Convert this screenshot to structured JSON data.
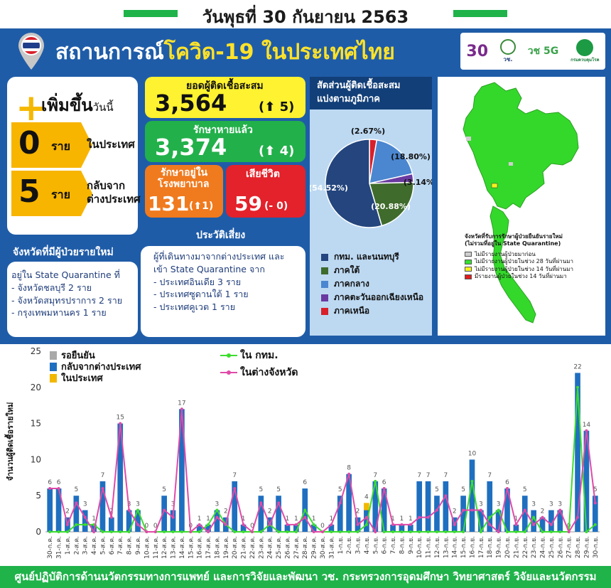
{
  "header": {
    "date": "วันพุธที่ 30 กันยายน 2563"
  },
  "title": {
    "main": "สถานการณ์",
    "highlight": "โควิด-19 ในประเทศไทย"
  },
  "logos": [
    "30",
    "วช.",
    "วช 5G",
    "กรมควบคุมโรค"
  ],
  "colors": {
    "panel": "#1f5ca8",
    "accent_green": "#1fb34a",
    "accent_yellow": "#ffe22a"
  },
  "increase": {
    "title": "เพิ่มขึ้น",
    "title_suffix": "วันนี้",
    "local_count": "0",
    "local_unit": "ราย",
    "local_label": "ในประเทศ",
    "abroad_count": "5",
    "abroad_unit": "ราย",
    "abroad_label_1": "กลับจาก",
    "abroad_label_2": "ต่างประเทศ"
  },
  "stats": {
    "cumulative_label": "ยอดผู้ติดเชื้อสะสม",
    "cumulative_value": "3,564",
    "cumulative_delta": "(⬆ 5)",
    "recovered_label": "รักษาหายแล้ว",
    "recovered_value": "3,374",
    "recovered_delta": "(⬆ 4)",
    "hospital_label_1": "รักษาอยู่ใน",
    "hospital_label_2": "โรงพยาบาล",
    "hospital_value": "131",
    "hospital_delta": "(⬆1)",
    "deaths_label": "เสียชีวิต",
    "deaths_value": "59",
    "deaths_delta": "(- 0)"
  },
  "provinces": {
    "heading": "จังหวัดที่มีผู้ป่วยรายใหม่",
    "intro": "อยู่ใน State Quarantine ที่",
    "items": [
      "-   จังหวัดชลบุรี 2 ราย",
      "-   จังหวัดสมุทรปราการ 2 ราย",
      "-   กรุงเทพมหานคร 1 ราย"
    ]
  },
  "risk": {
    "heading": "ประวัติเสี่ยง",
    "intro_1": "ผู้ที่เดินทางมาจากต่างประเทศ และ",
    "intro_2": "เข้า State Quarantine จาก",
    "items": [
      "-   ประเทศอินเดีย 3 ราย",
      "-   ประเทศซูดานใต้ 1 ราย",
      "-   ประเทศคูเวต 1 ราย"
    ]
  },
  "pie": {
    "heading_1": "สัดส่วนผู้ติดเชื้อสะสม",
    "heading_2": "แบ่งตามภูมิภาค",
    "slices": [
      {
        "name": "กทม. และนนทบุรี",
        "value": 54.52,
        "label": "(54.52%)",
        "color": "#24457d"
      },
      {
        "name": "ภาคใต้",
        "value": 20.88,
        "label": "(20.88%)",
        "color": "#3f6b2c"
      },
      {
        "name": "ภาคกลาง",
        "value": 18.8,
        "label": "(18.80%)",
        "color": "#4b86d0"
      },
      {
        "name": "ภาคตะวันออกเฉียงเหนือ",
        "value": 3.14,
        "label": "(3.14%)",
        "color": "#6a3aa0"
      },
      {
        "name": "ภาคเหนือ",
        "value": 2.67,
        "label": "(2.67%)",
        "color": "#d8202a"
      }
    ]
  },
  "map": {
    "legend_title_1": "จังหวัดที่รับการรักษาผู้ป่วยยืนยันรายใหม่",
    "legend_title_2": "(ไม่รวมที่อยู่ใน State Quarantine)",
    "legend": [
      {
        "label": "ไม่มีรายงานผู้ป่วยมาก่อน",
        "color": "#cfcfcf"
      },
      {
        "label": "ไม่มีรายงานผู้ป่วยในช่วง 28 วันที่ผ่านมา",
        "color": "#36e02e"
      },
      {
        "label": "ไม่มีรายงานผู้ป่วยในช่วง 14 วันที่ผ่านมา",
        "color": "#f5f21c"
      },
      {
        "label": "มีรายงานผู้ป่วยในช่วง 14 วันที่ผ่านมา",
        "color": "#e21b1b"
      }
    ]
  },
  "chart_data": {
    "type": "bar",
    "ylabel": "จำนวนผู้ติดเชื้อรายใหม่",
    "ylim": [
      0,
      25
    ],
    "yticks": [
      0,
      5,
      10,
      15,
      20,
      25
    ],
    "categories": [
      "30-ก.ค.",
      "31-ก.ค.",
      "1-ส.ค.",
      "2-ส.ค.",
      "3-ส.ค.",
      "4-ส.ค.",
      "5-ส.ค.",
      "6-ส.ค.",
      "7-ส.ค.",
      "8-ส.ค.",
      "9-ส.ค.",
      "10-ส.ค.",
      "11-ส.ค.",
      "12-ส.ค.",
      "13-ส.ค.",
      "14-ส.ค.",
      "15-ส.ค.",
      "16-ส.ค.",
      "17-ส.ค.",
      "18-ส.ค.",
      "19-ส.ค.",
      "20-ส.ค.",
      "21-ส.ค.",
      "22-ส.ค.",
      "23-ส.ค.",
      "24-ส.ค.",
      "25-ส.ค.",
      "26-ส.ค.",
      "27-ส.ค.",
      "28-ส.ค.",
      "29-ส.ค.",
      "30-ส.ค.",
      "31-ส.ค.",
      "1-ก.ย.",
      "2-ก.ย.",
      "3-ก.ย.",
      "4-ก.ย.",
      "5-ก.ย.",
      "6-ก.ย.",
      "7-ก.ย.",
      "8-ก.ย.",
      "9-ก.ย.",
      "10-ก.ย.",
      "11-ก.ย.",
      "12-ก.ย.",
      "13-ก.ย.",
      "14-ก.ย.",
      "15-ก.ย.",
      "16-ก.ย.",
      "17-ก.ย.",
      "18-ก.ย.",
      "19-ก.ย.",
      "20-ก.ย.",
      "21-ก.ย.",
      "22-ก.ย.",
      "23-ก.ย.",
      "24-ก.ย.",
      "25-ก.ย.",
      "26-ก.ย.",
      "27-ก.ย.",
      "28-ก.ย.",
      "29-ก.ย.",
      "30-ก.ย."
    ],
    "totals": [
      6,
      6,
      2,
      5,
      3,
      1,
      7,
      2,
      15,
      3,
      3,
      0,
      0,
      5,
      3,
      17,
      0,
      1,
      1,
      3,
      2,
      7,
      1,
      0,
      5,
      2,
      5,
      1,
      1,
      6,
      1,
      0,
      1,
      5,
      8,
      2,
      4,
      7,
      6,
      1,
      1,
      1,
      7,
      7,
      5,
      7,
      2,
      5,
      10,
      3,
      7,
      3,
      6,
      1,
      5,
      3,
      2,
      3,
      3,
      0,
      22,
      14,
      5
    ],
    "series": [
      {
        "name": "รอยืนยัน",
        "type": "bar",
        "color": "#a9a9a9",
        "values": [
          0,
          0,
          0,
          0,
          0,
          0,
          0,
          0,
          0,
          0,
          0,
          0,
          0,
          0,
          0,
          0,
          0,
          0,
          0,
          0,
          0,
          0,
          0,
          0,
          0,
          0,
          0,
          0,
          0,
          0,
          0,
          0,
          0,
          0,
          0,
          0,
          0,
          0,
          0,
          0,
          0,
          0,
          0,
          0,
          0,
          0,
          0,
          0,
          0,
          0,
          0,
          0,
          0,
          0,
          0,
          0,
          0,
          0,
          0,
          0,
          0,
          0,
          0
        ]
      },
      {
        "name": "กลับจากต่างประเทศ",
        "type": "bar",
        "color": "#1f6fc0",
        "values": [
          6,
          6,
          2,
          5,
          3,
          1,
          7,
          2,
          15,
          3,
          3,
          0,
          0,
          5,
          3,
          17,
          0,
          1,
          1,
          3,
          2,
          7,
          1,
          0,
          5,
          2,
          5,
          1,
          1,
          6,
          1,
          0,
          1,
          5,
          8,
          2,
          3,
          7,
          6,
          1,
          1,
          1,
          7,
          7,
          5,
          7,
          2,
          5,
          10,
          3,
          7,
          3,
          6,
          1,
          5,
          3,
          2,
          3,
          3,
          0,
          22,
          14,
          5
        ]
      },
      {
        "name": "ในประเทศ",
        "type": "bar",
        "color": "#f2b800",
        "values": [
          0,
          0,
          0,
          0,
          0,
          0,
          0,
          0,
          0,
          0,
          0,
          0,
          0,
          0,
          0,
          0,
          0,
          0,
          0,
          0,
          0,
          0,
          0,
          0,
          0,
          0,
          0,
          0,
          0,
          0,
          0,
          0,
          0,
          0,
          0,
          0,
          1,
          0,
          0,
          0,
          0,
          0,
          0,
          0,
          0,
          0,
          0,
          0,
          0,
          0,
          0,
          0,
          0,
          0,
          0,
          0,
          0,
          0,
          0,
          0,
          0,
          0,
          0
        ]
      },
      {
        "name": "ใน กทม.",
        "type": "line",
        "color": "#3ddc2e",
        "values": [
          0,
          0,
          0,
          1,
          1,
          1,
          0,
          0,
          0,
          0,
          3,
          0,
          0,
          0,
          0,
          0,
          0,
          0,
          1,
          3,
          1,
          0,
          0,
          0,
          0,
          1,
          0,
          0,
          0,
          3,
          1,
          0,
          0,
          0,
          0,
          0,
          1,
          7,
          0,
          0,
          0,
          0,
          0,
          0,
          0,
          0,
          0,
          0,
          7,
          0,
          2,
          3,
          0,
          0,
          0,
          2,
          0,
          0,
          0,
          0,
          20,
          0,
          1
        ]
      },
      {
        "name": "ในต่างจังหวัด",
        "type": "line",
        "color": "#e04aa8",
        "values": [
          6,
          6,
          1,
          4,
          2,
          0,
          6,
          2,
          15,
          3,
          1,
          0,
          0,
          3,
          2,
          17,
          0,
          1,
          0,
          2,
          1,
          6,
          1,
          0,
          4,
          1,
          4,
          1,
          1,
          2,
          0,
          0,
          1,
          4,
          8,
          1,
          2,
          0,
          6,
          1,
          1,
          1,
          2,
          2,
          3,
          5,
          1,
          3,
          3,
          3,
          1,
          0,
          6,
          1,
          3,
          1,
          2,
          1,
          3,
          0,
          2,
          14,
          4
        ]
      }
    ]
  },
  "footer": {
    "text": "ศูนย์ปฏิบัติการด้านนวัตกรรมทางการแพทย์ และการวิจัยและพัฒนา   วช.   กระทรวงการอุดมศึกษา วิทยาศาสตร์ วิจัยและนวัตกรรม"
  }
}
